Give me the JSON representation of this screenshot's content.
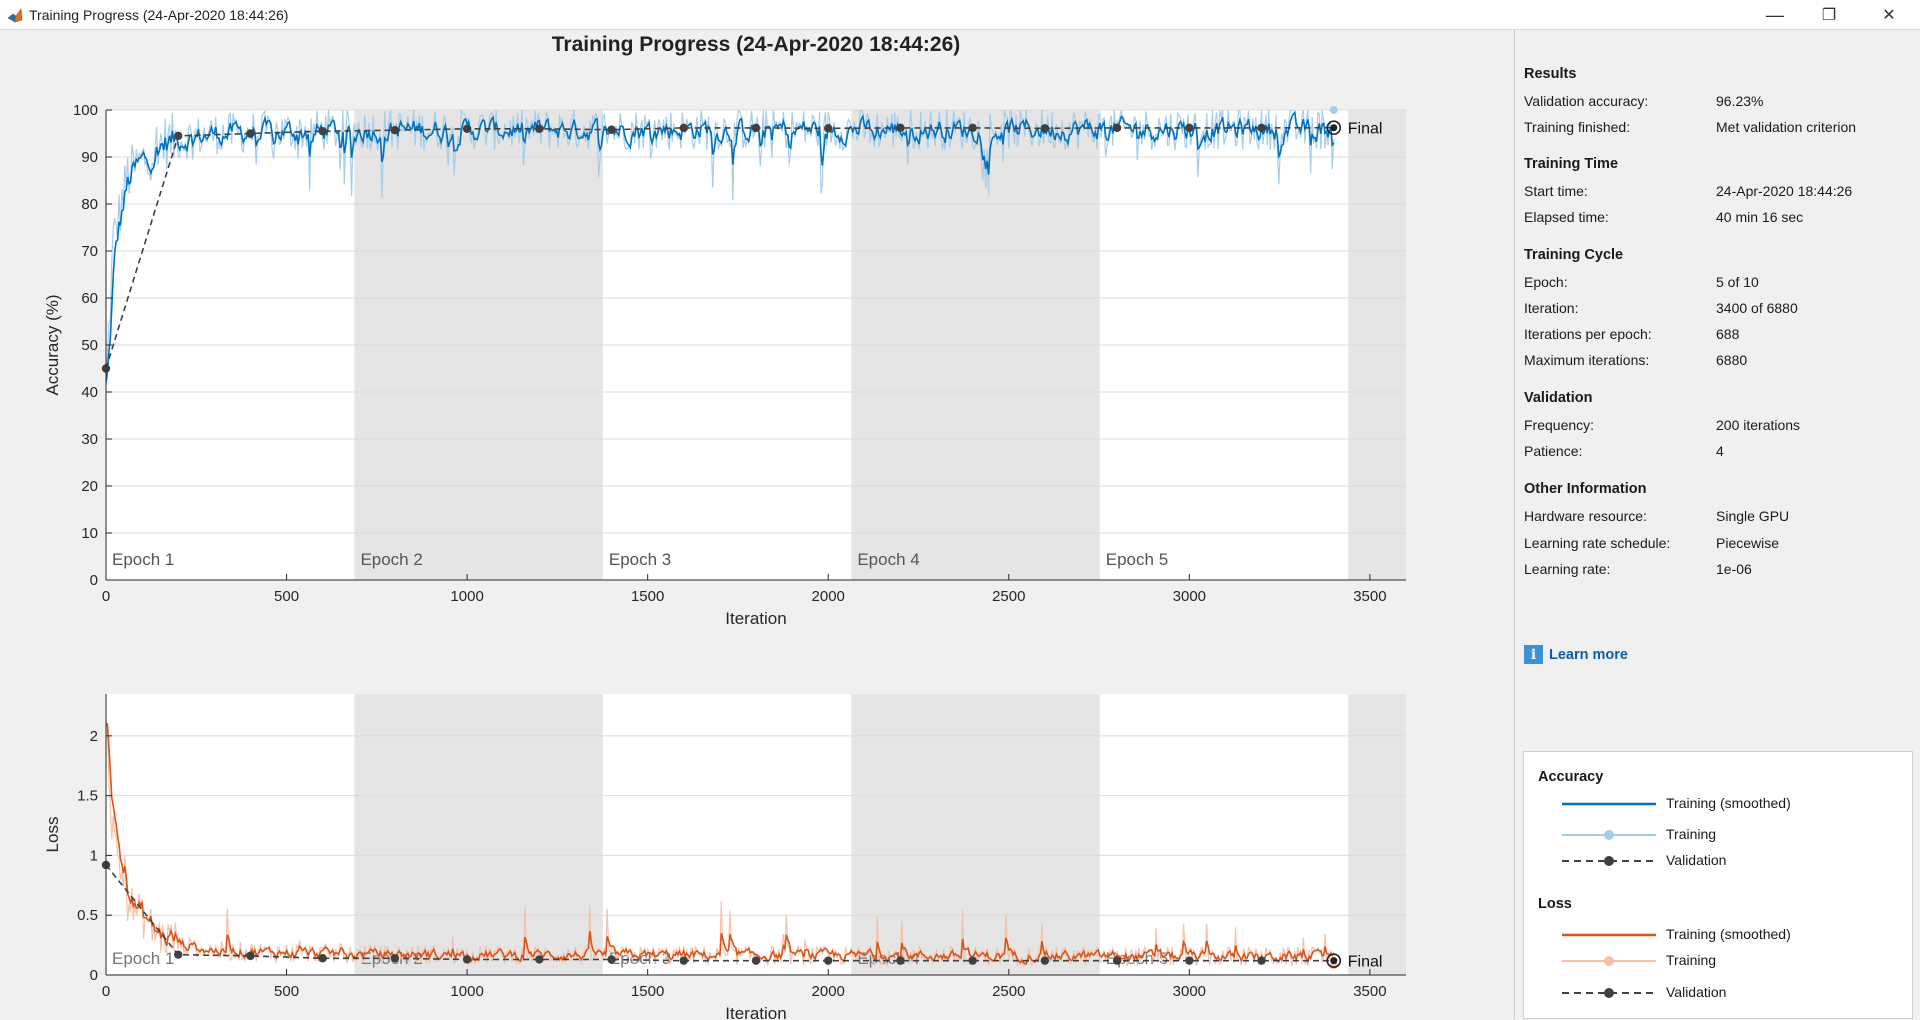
{
  "window": {
    "title": "Training Progress (24-Apr-2020 18:44:26)",
    "minimize": "—",
    "maximize": "❐",
    "close": "✕"
  },
  "plot": {
    "title": "Training Progress (24-Apr-2020 18:44:26)",
    "final_label": "Final",
    "epochs": [
      "Epoch 1",
      "Epoch 2",
      "Epoch 3",
      "Epoch 4",
      "Epoch 5"
    ]
  },
  "chart_data": [
    {
      "type": "line",
      "ylabel": "Accuracy (%)",
      "xlabel": "Iteration",
      "xlim": [
        0,
        3600
      ],
      "ylim": [
        0,
        100
      ],
      "x_ticks": [
        "0",
        "500",
        "1000",
        "1500",
        "2000",
        "2500",
        "3000",
        "3500"
      ],
      "y_ticks": [
        "0",
        "10",
        "20",
        "30",
        "40",
        "50",
        "60",
        "70",
        "80",
        "90",
        "100"
      ],
      "epoch_boundaries": [
        0,
        688,
        1376,
        2064,
        2752,
        3440
      ],
      "series": [
        {
          "name": "Training (smoothed)",
          "color": "#0072bd",
          "trend": [
            [
              0,
              40
            ],
            [
              20,
              72
            ],
            [
              60,
              86
            ],
            [
              150,
              93
            ],
            [
              300,
              95
            ],
            [
              700,
              95.8
            ],
            [
              3400,
              96
            ]
          ]
        },
        {
          "name": "Training",
          "color": "#a6cdea",
          "trend": [
            [
              0,
              40
            ],
            [
              20,
              72
            ],
            [
              60,
              86
            ],
            [
              150,
              93
            ],
            [
              300,
              95
            ],
            [
              700,
              95.8
            ],
            [
              3400,
              96
            ]
          ]
        },
        {
          "name": "Validation",
          "color": "#404040",
          "x": [
            0,
            200,
            400,
            600,
            800,
            1000,
            1200,
            1400,
            1600,
            1800,
            2000,
            2200,
            2400,
            2600,
            2800,
            3000,
            3200,
            3400
          ],
          "y": [
            45,
            94.5,
            95,
            95.5,
            95.7,
            96,
            96,
            95.8,
            96.2,
            96.2,
            96.1,
            96.2,
            96.2,
            96.1,
            96.2,
            96.2,
            96.2,
            96.23
          ]
        }
      ]
    },
    {
      "type": "line",
      "ylabel": "Loss",
      "xlabel": "Iteration",
      "xlim": [
        0,
        3600
      ],
      "ylim": [
        0,
        2.35
      ],
      "x_ticks": [
        "0",
        "500",
        "1000",
        "1500",
        "2000",
        "2500",
        "3000",
        "3500"
      ],
      "y_ticks": [
        "0",
        "0.5",
        "1",
        "1.5",
        "2"
      ],
      "epoch_boundaries": [
        0,
        688,
        1376,
        2064,
        2752,
        3440
      ],
      "series": [
        {
          "name": "Training (smoothed)",
          "color": "#d95319",
          "trend": [
            [
              0,
              2.2
            ],
            [
              15,
              1.2
            ],
            [
              60,
              0.55
            ],
            [
              150,
              0.25
            ],
            [
              300,
              0.17
            ],
            [
              700,
              0.14
            ],
            [
              3400,
              0.12
            ]
          ]
        },
        {
          "name": "Training",
          "color": "#f4c2a9",
          "trend": [
            [
              0,
              2.2
            ],
            [
              15,
              1.2
            ],
            [
              60,
              0.55
            ],
            [
              150,
              0.25
            ],
            [
              300,
              0.17
            ],
            [
              700,
              0.14
            ],
            [
              3400,
              0.12
            ]
          ]
        },
        {
          "name": "Validation",
          "color": "#404040",
          "x": [
            0,
            200,
            400,
            600,
            800,
            1000,
            1200,
            1400,
            1600,
            1800,
            2000,
            2200,
            2400,
            2600,
            2800,
            3000,
            3200,
            3400
          ],
          "y": [
            0.92,
            0.17,
            0.16,
            0.14,
            0.14,
            0.13,
            0.13,
            0.13,
            0.12,
            0.12,
            0.12,
            0.12,
            0.12,
            0.12,
            0.12,
            0.12,
            0.12,
            0.12
          ]
        }
      ]
    }
  ],
  "side": {
    "results": {
      "heading": "Results",
      "rows": [
        {
          "label": "Validation accuracy:",
          "value": "96.23%"
        },
        {
          "label": "Training finished:",
          "value": "Met validation criterion"
        }
      ]
    },
    "training_time": {
      "heading": "Training Time",
      "rows": [
        {
          "label": "Start time:",
          "value": "24-Apr-2020 18:44:26"
        },
        {
          "label": "Elapsed time:",
          "value": "40 min 16 sec"
        }
      ]
    },
    "training_cycle": {
      "heading": "Training Cycle",
      "rows": [
        {
          "label": "Epoch:",
          "value": "5 of 10"
        },
        {
          "label": "Iteration:",
          "value": "3400 of 6880"
        },
        {
          "label": "Iterations per epoch:",
          "value": "688"
        },
        {
          "label": "Maximum iterations:",
          "value": "6880"
        }
      ]
    },
    "validation": {
      "heading": "Validation",
      "rows": [
        {
          "label": "Frequency:",
          "value": "200 iterations"
        },
        {
          "label": "Patience:",
          "value": "4"
        }
      ]
    },
    "other": {
      "heading": "Other Information",
      "rows": [
        {
          "label": "Hardware resource:",
          "value": "Single GPU"
        },
        {
          "label": "Learning rate schedule:",
          "value": "Piecewise"
        },
        {
          "label": "Learning rate:",
          "value": "1e-06"
        }
      ]
    },
    "learn_more": "Learn more",
    "info_glyph": "i"
  },
  "legend": {
    "accuracy_heading": "Accuracy",
    "loss_heading": "Loss",
    "accuracy": [
      {
        "label": "Training (smoothed)",
        "color": "#0072bd",
        "style": "solid"
      },
      {
        "label": "Training",
        "color": "#a6cdea",
        "style": "marker"
      },
      {
        "label": "Validation",
        "color": "#404040",
        "style": "dashed"
      }
    ],
    "loss": [
      {
        "label": "Training (smoothed)",
        "color": "#d95319",
        "style": "solid"
      },
      {
        "label": "Training",
        "color": "#f4c2a9",
        "style": "marker"
      },
      {
        "label": "Validation",
        "color": "#404040",
        "style": "dashed"
      }
    ]
  }
}
